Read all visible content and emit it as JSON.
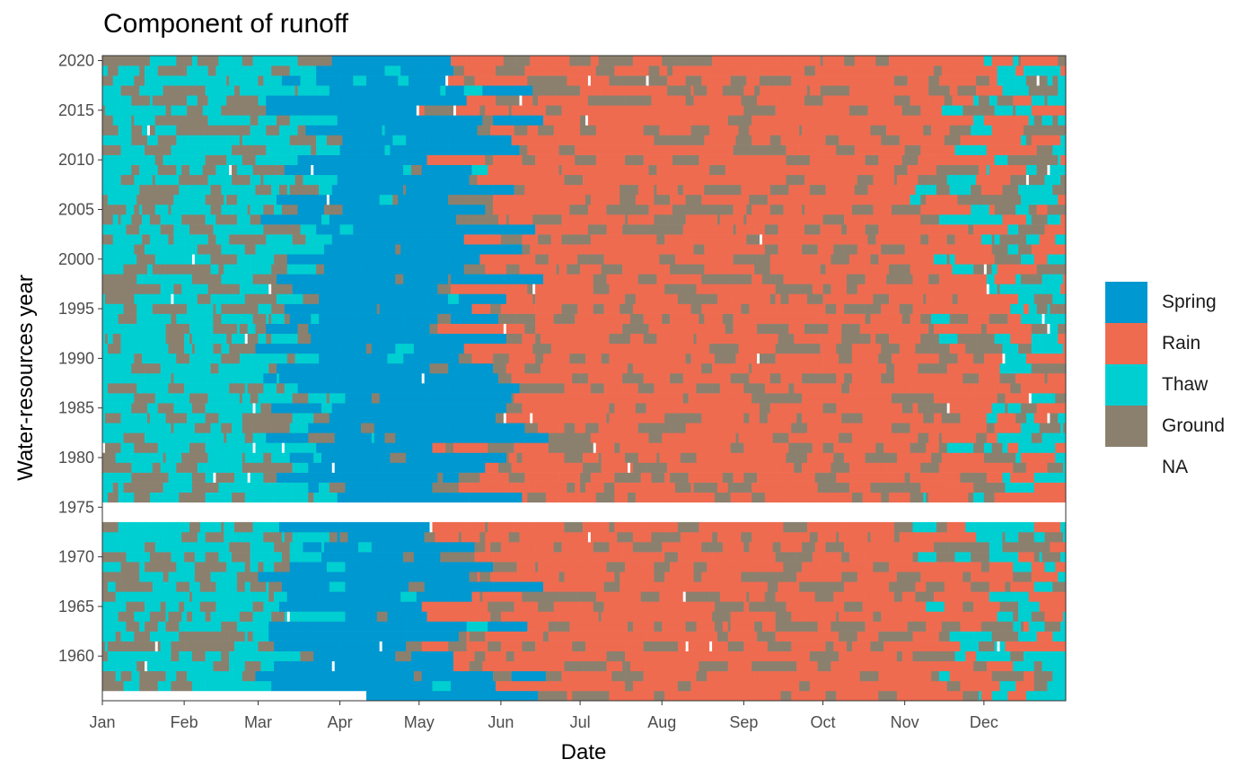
{
  "chart_data": {
    "type": "heatmap",
    "title": "Component of runoff",
    "xlabel": "Date",
    "ylabel": "Water-resources year",
    "x_ticks": [
      "Jan",
      "Feb",
      "Mar",
      "Apr",
      "May",
      "Jun",
      "Jul",
      "Aug",
      "Sep",
      "Oct",
      "Nov",
      "Dec"
    ],
    "x_tick_days": [
      0,
      31,
      59,
      90,
      120,
      151,
      181,
      212,
      243,
      273,
      304,
      334
    ],
    "y_ticks": [
      1960,
      1965,
      1970,
      1975,
      1980,
      1985,
      1990,
      1995,
      2000,
      2005,
      2010,
      2015,
      2020
    ],
    "xlim_days": [
      0,
      365
    ],
    "ylim": [
      1955.5,
      2020.5
    ],
    "legend_position": "right",
    "categories": [
      {
        "name": "Spring",
        "color": "#0098d0"
      },
      {
        "name": "Rain",
        "color": "#ee6b50"
      },
      {
        "name": "Thaw",
        "color": "#00cfd1"
      },
      {
        "name": "Ground",
        "color": "#8b806e"
      },
      {
        "name": "NA",
        "color": "#ffffff"
      }
    ],
    "years_missing_data": [
      1974,
      1975
    ],
    "partial_year_missing": {
      "year": 1956,
      "from": "Jan 1",
      "to": "Apr 10"
    },
    "seasonal_pattern": [
      {
        "component": "Thaw",
        "approx_period": "Jan – Mar, Nov – Dec (mixed with Ground)"
      },
      {
        "component": "Spring",
        "approx_period": "Mar – May"
      },
      {
        "component": "Rain",
        "approx_period": "May – Oct (mixed with Ground)"
      },
      {
        "component": "Ground",
        "approx_period": "scattered throughout the year"
      }
    ]
  }
}
